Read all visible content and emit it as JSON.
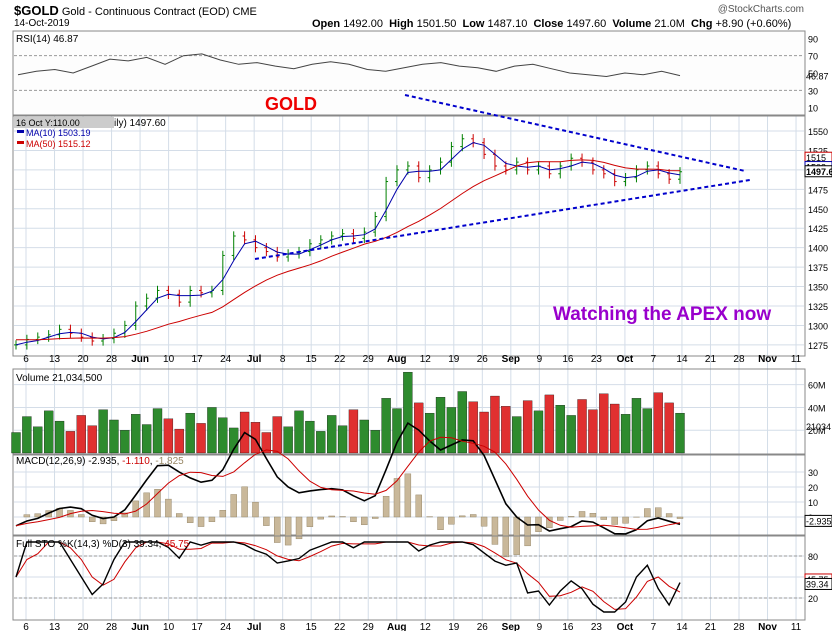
{
  "header": {
    "symbol": "$GOLD",
    "name": "Gold - Continuous Contract (EOD)",
    "exchange": "CME",
    "date": "14-Oct-2019",
    "watermark": "@StockCharts.com",
    "open_label": "Open",
    "open": "1492.00",
    "high_label": "High",
    "high": "1501.50",
    "low_label": "Low",
    "low": "1487.10",
    "close_label": "Close",
    "close": "1497.60",
    "volume_label": "Volume",
    "volume": "21.0M",
    "chg_label": "Chg",
    "chg": "+8.90 (+0.60%)"
  },
  "annotations": {
    "gold": "GOLD",
    "apex": "Watching the APEX now"
  },
  "chart_data": [
    {
      "type": "line",
      "panel": "RSI",
      "legend": "RSI(14) 46.87",
      "y_ticks": [
        10,
        30,
        50,
        70,
        90
      ],
      "last_value_label": "46.87",
      "values": [
        48,
        52,
        54,
        50,
        58,
        66,
        64,
        68,
        60,
        70,
        72,
        65,
        60,
        62,
        58,
        55,
        60,
        63,
        60,
        54,
        52,
        56,
        60,
        62,
        58,
        56,
        52,
        58,
        60,
        55,
        50,
        48,
        46,
        50,
        48,
        52,
        47
      ]
    },
    {
      "type": "line",
      "panel": "Price",
      "legend_overlay": "16 Oct Y:110.00",
      "legend_suffix": "ily) 1497.60",
      "series": [
        {
          "name": "MA(10) 1503.19",
          "color": "#0000aa"
        },
        {
          "name": "MA(50) 1515.12",
          "color": "#cc0000"
        }
      ],
      "y_ticks": [
        1275,
        1300,
        1325,
        1350,
        1375,
        1400,
        1425,
        1450,
        1475,
        1500,
        1525,
        1550
      ],
      "right_labels": [
        "1515",
        "1503",
        "1497.6"
      ],
      "x_tick_labels": [
        "6",
        "13",
        "20",
        "28",
        "Jun",
        "10",
        "17",
        "24",
        "Jul",
        "8",
        "15",
        "22",
        "29",
        "Aug",
        "12",
        "19",
        "26",
        "Sep",
        "9",
        "16",
        "23",
        "Oct",
        "7",
        "14",
        "21",
        "28",
        "Nov",
        "11"
      ],
      "closes": [
        1275,
        1282,
        1285,
        1288,
        1295,
        1290,
        1285,
        1280,
        1283,
        1290,
        1300,
        1325,
        1335,
        1345,
        1340,
        1330,
        1345,
        1342,
        1345,
        1390,
        1415,
        1410,
        1400,
        1395,
        1388,
        1392,
        1395,
        1405,
        1410,
        1415,
        1418,
        1412,
        1420,
        1440,
        1485,
        1500,
        1505,
        1490,
        1500,
        1510,
        1530,
        1540,
        1535,
        1520,
        1505,
        1500,
        1510,
        1500,
        1505,
        1495,
        1505,
        1515,
        1510,
        1500,
        1495,
        1485,
        1490,
        1500,
        1505,
        1495,
        1488,
        1497.6
      ]
    },
    {
      "type": "bar",
      "panel": "Volume",
      "legend": "Volume 21,034,500",
      "y_ticks": [
        "20M",
        "40M",
        "60M"
      ],
      "last_value_label": "21034"
    },
    {
      "type": "line",
      "panel": "MACD",
      "legend": "MACD(12,26,9) -2.935, -1.110, -1.825",
      "legend_parts": {
        "label": "MACD(12,26,9)",
        "macd": "-2.935",
        "signal": "-1.110",
        "hist": "-1.825"
      },
      "y_ticks": [
        0,
        10,
        20,
        30
      ],
      "last_value_label": "-2.935"
    },
    {
      "type": "line",
      "panel": "Full STO",
      "legend": "Full STO %K(14,3) %D(3) 39.34, 45.75",
      "legend_parts": {
        "label": "Full STO %K(14,3) %D(3)",
        "k": "39.34",
        "d": "45.75"
      },
      "y_ticks": [
        20,
        50,
        80
      ],
      "right_labels": [
        "45.75",
        "39.34"
      ]
    }
  ]
}
